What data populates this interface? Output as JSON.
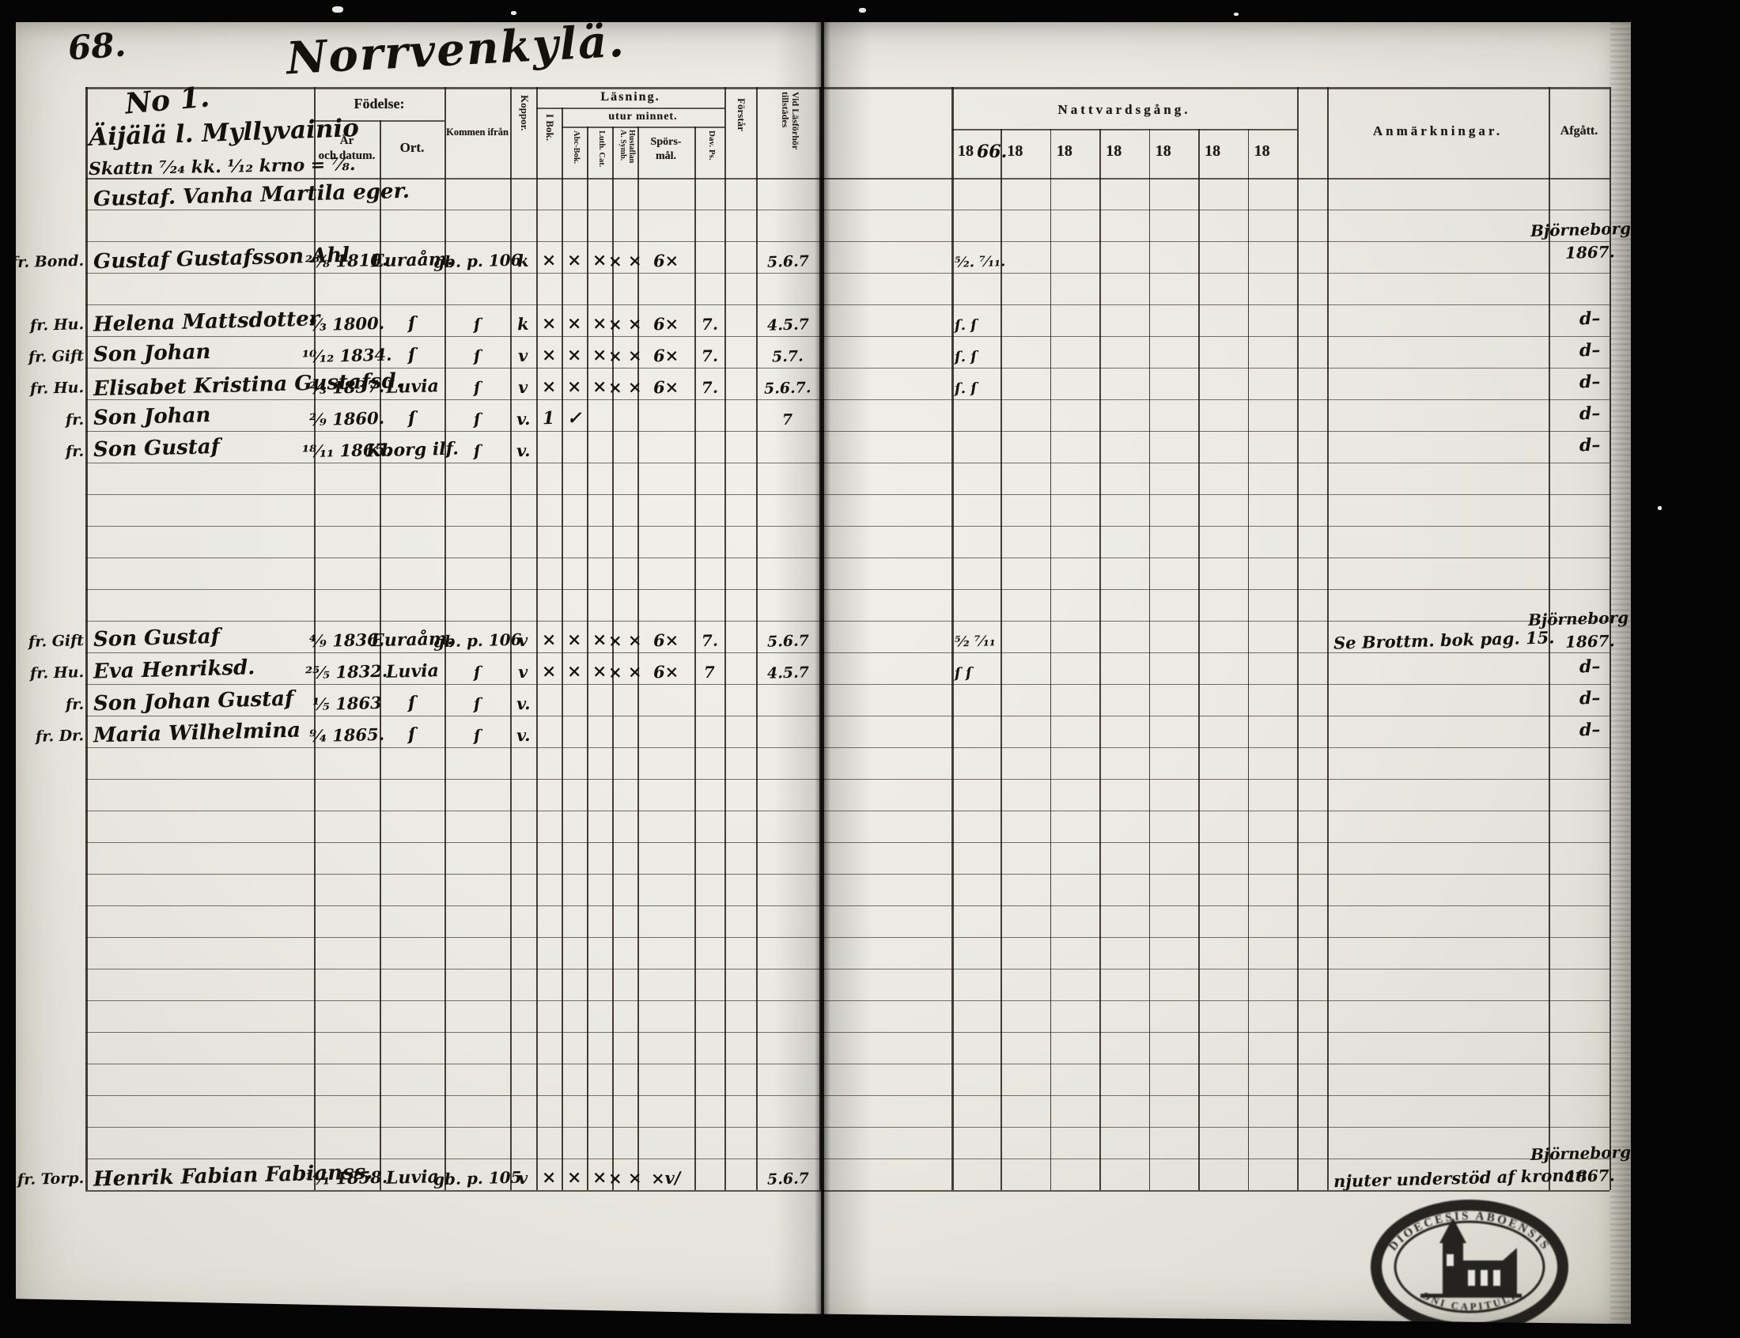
{
  "page": {
    "number": "68.",
    "title": "Norrvenkylä."
  },
  "header": {
    "no": "No 1.",
    "village": "Äijälä l. Myllyvainio",
    "note": "Skattn ⁷⁄₂₄ kk. ¹⁄₁₂ krno = ⁷⁄₈.",
    "columns": {
      "fodelse": "Födelse:",
      "ar_och_datum": "År\noch datum.",
      "ort": "Ort.",
      "kommen_ifran": "Kommen ifrån",
      "koppor": "Koppor.",
      "lasning": "Läsning.",
      "utur_minnet": "utur minnet.",
      "i_bok": "I Bok.",
      "abc_bok": "Abc-Bok.",
      "luth_cat": "Luth. Cat.",
      "hustaflan": "Hustaflan\nA. Symb.",
      "sporsmal": "Spörs-\nmål.",
      "dav_ps": "Dav. Ps.",
      "forstar": "Förstår",
      "vid_lasforhor": "Vid Läsförhör\ntillstädes",
      "nattvardsgang": "Nattvardsgång.",
      "anmarkningar": "Anmärkningar.",
      "afgatt": "Afgått."
    },
    "years": [
      {
        "printed": "18",
        "hand": "66."
      },
      {
        "printed": "18",
        "hand": ""
      },
      {
        "printed": "18",
        "hand": ""
      },
      {
        "printed": "18",
        "hand": ""
      },
      {
        "printed": "18",
        "hand": ""
      },
      {
        "printed": "18",
        "hand": ""
      },
      {
        "printed": "18",
        "hand": ""
      }
    ]
  },
  "rows": [
    {
      "row": 0,
      "prefix": "",
      "cells": {
        "name": "Gustaf. Vanha Martila eger."
      }
    },
    {
      "row": 2,
      "prefix": "fr. Bond.",
      "cells": {
        "name": "Gustaf Gustafsson Ahl",
        "birth": "²⁸⁄₈ 1810.",
        "ort": "Euraåm.",
        "from": "gb. p. 106",
        "koppor": "k",
        "ibok": "×",
        "abc": "×",
        "luth": "×",
        "hust": "× ×",
        "spors": "6×",
        "davps": "",
        "vidlas": "5.6.7"
      }
    },
    {
      "row": 4,
      "prefix": "fr. Hu.",
      "cells": {
        "name": "Helena Mattsdotter",
        "birth": "⁹⁄₃ 1800.",
        "ort": "ſ",
        "from": "ſ",
        "koppor": "k",
        "ibok": "×",
        "abc": "×",
        "luth": "×",
        "hust": "× ×",
        "spors": "6×",
        "davps": "7.",
        "vidlas": "4.5.7"
      }
    },
    {
      "row": 5,
      "prefix": "fr. Gift",
      "cells": {
        "name": "Son Johan",
        "birth": "¹⁰⁄₁₂ 1834.",
        "ort": "ſ",
        "from": "ſ",
        "koppor": "v",
        "ibok": "×",
        "abc": "×",
        "luth": "×",
        "hust": "× ×",
        "spors": "6×",
        "davps": "7.",
        "vidlas": "5.7."
      }
    },
    {
      "row": 6,
      "prefix": "fr. Hu.",
      "cells": {
        "name": "Elisabet Kristina Gustafsd.",
        "birth": "²⁄₃ 1837.",
        "ort": "Luvia",
        "from": "ſ",
        "koppor": "v",
        "ibok": "×",
        "abc": "×",
        "luth": "×",
        "hust": "× ×",
        "spors": "6×",
        "davps": "7.",
        "vidlas": "5.6.7."
      }
    },
    {
      "row": 7,
      "prefix": "fr.",
      "cells": {
        "name": "Son Johan",
        "birth": "²⁄₉ 1860.",
        "ort": "ſ",
        "from": "ſ",
        "koppor": "v.",
        "ibok": "1",
        "abc": "✓",
        "vidlas": "7"
      }
    },
    {
      "row": 8,
      "prefix": "fr.",
      "cells": {
        "name": "Son Gustaf",
        "birth": "¹⁸⁄₁₁ 1865.",
        "ort": "Kborg ilf.",
        "from": "ſ",
        "koppor": "v."
      }
    },
    {
      "row": 14,
      "prefix": "fr. Gift",
      "cells": {
        "name": "Son Gustaf",
        "birth": "⁴⁄₉ 1836.",
        "ort": "Euraåm.",
        "from": "gb. p. 106",
        "koppor": "v",
        "ibok": "×",
        "abc": "×",
        "luth": "×",
        "hust": "× ×",
        "spors": "6×",
        "davps": "7.",
        "vidlas": "5.6.7"
      }
    },
    {
      "row": 15,
      "prefix": "fr. Hu.",
      "cells": {
        "name": "Eva Henriksd.",
        "birth": "²⁵⁄₅ 1832.",
        "ort": "Luvia",
        "from": "ſ",
        "koppor": "v",
        "ibok": "×",
        "abc": "×",
        "luth": "×",
        "hust": "× ×",
        "spors": "6×",
        "davps": "7",
        "vidlas": "4.5.7"
      }
    },
    {
      "row": 16,
      "prefix": "fr.",
      "cells": {
        "name": "Son Johan Gustaf",
        "birth": "¹⁄₅ 1863",
        "ort": "ſ",
        "from": "ſ",
        "koppor": "v."
      }
    },
    {
      "row": 17,
      "prefix": "fr. Dr.",
      "cells": {
        "name": "Maria Wilhelmina",
        "birth": "⁹⁄₄ 1865.",
        "ort": "ſ",
        "from": "ſ",
        "koppor": "v."
      }
    },
    {
      "row": 31,
      "prefix": "fr. Torp.",
      "cells": {
        "name": "Henrik Fabian Fabianss.",
        "birth": "¹⁴⁄₁ 1858.",
        "ort": "Luvia",
        "from": "gb. p. 105",
        "koppor": "v",
        "ibok": "×",
        "abc": "×",
        "luth": "×",
        "hust": "× ×",
        "spors": "×v∕",
        "vidlas": "5.6.7"
      }
    }
  ],
  "natt_column": [
    {
      "row": 2,
      "text": "⁵⁄₂.  ⁷⁄₁₁."
    },
    {
      "row": 4,
      "text": "ſ.  ſ"
    },
    {
      "row": 5,
      "text": "ſ.  ſ"
    },
    {
      "row": 6,
      "text": "ſ.  ſ"
    },
    {
      "row": 14,
      "text": "⁵⁄₂  ⁷⁄₁₁"
    },
    {
      "row": 15,
      "text": "ſ  ſ"
    }
  ],
  "anm_column": [
    {
      "row": 14,
      "text": "Se Brottm. bok pag. 15."
    },
    {
      "row": 31,
      "text": "njuter understöd af kronan."
    }
  ],
  "afgatt_column": [
    {
      "row": 1.1,
      "lines": [
        "Björneborg lf",
        "1867."
      ]
    },
    {
      "row": 4,
      "lines": [
        "d–"
      ]
    },
    {
      "row": 5,
      "lines": [
        "d–"
      ]
    },
    {
      "row": 6,
      "lines": [
        "d–"
      ]
    },
    {
      "row": 7,
      "lines": [
        "d–"
      ]
    },
    {
      "row": 8,
      "lines": [
        "d–"
      ]
    },
    {
      "row": 13.4,
      "lines": [
        "Björneborg lf.",
        "1867."
      ]
    },
    {
      "row": 15,
      "lines": [
        "d–"
      ]
    },
    {
      "row": 16,
      "lines": [
        "d–"
      ]
    },
    {
      "row": 17,
      "lines": [
        "d–"
      ]
    },
    {
      "row": 30.3,
      "lines": [
        "Björneborg lf",
        "1867."
      ]
    }
  ],
  "stamp": {
    "arc_top": "DIOECESIS ABOENSIS",
    "arc_bottom": "ONI CAPITULI"
  }
}
